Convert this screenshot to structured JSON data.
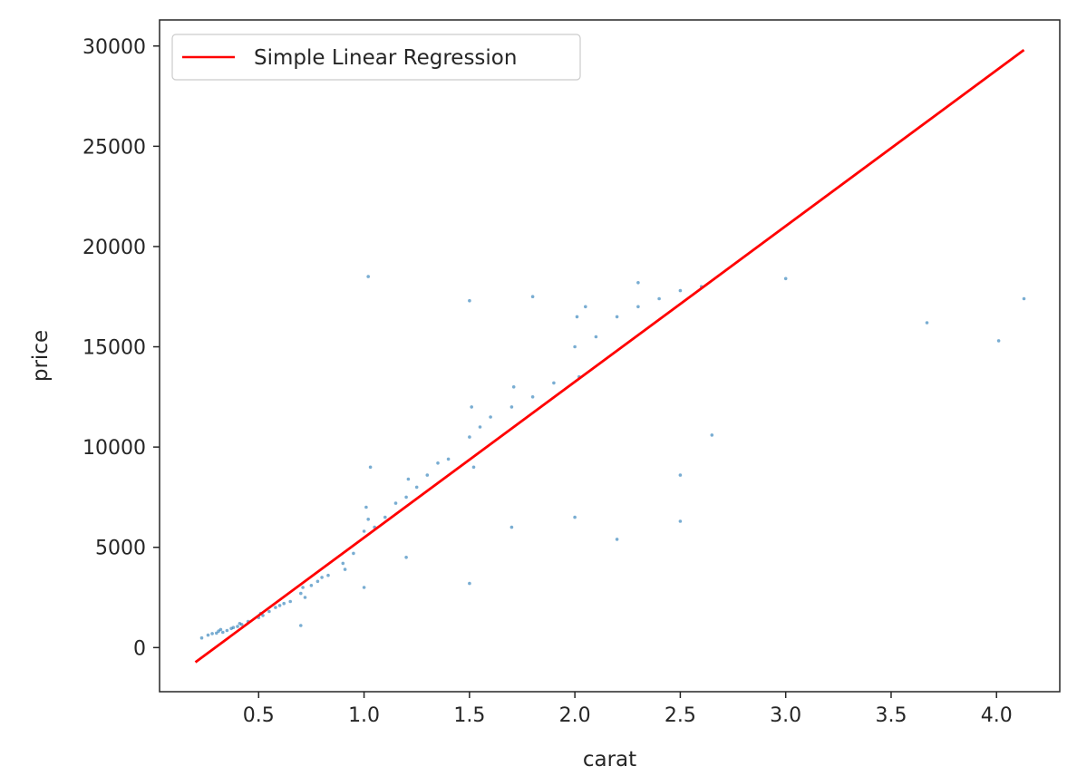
{
  "chart_data": {
    "type": "scatter",
    "title": "",
    "xlabel": "carat",
    "ylabel": "price",
    "xlim": [
      0.03,
      4.3
    ],
    "ylim": [
      -2200,
      31300
    ],
    "x_ticks": [
      0.5,
      1.0,
      1.5,
      2.0,
      2.5,
      3.0,
      3.5,
      4.0
    ],
    "x_tick_labels": [
      "0.5",
      "1.0",
      "1.5",
      "2.0",
      "2.5",
      "3.0",
      "3.5",
      "4.0"
    ],
    "y_ticks": [
      0,
      5000,
      10000,
      15000,
      20000,
      25000,
      30000
    ],
    "y_tick_labels": [
      "0",
      "5000",
      "10000",
      "15000",
      "20000",
      "25000",
      "30000"
    ],
    "grid": false,
    "legend": {
      "position": "top-left",
      "entries": [
        "Simple Linear Regression"
      ]
    },
    "colors": {
      "points": "#1f77b4",
      "line": "#ff0000",
      "axis": "#262626"
    },
    "series": [
      {
        "kind": "scatter",
        "points": [
          [
            0.23,
            480
          ],
          [
            0.26,
            620
          ],
          [
            0.28,
            700
          ],
          [
            0.3,
            720
          ],
          [
            0.31,
            820
          ],
          [
            0.32,
            900
          ],
          [
            0.33,
            760
          ],
          [
            0.35,
            850
          ],
          [
            0.37,
            950
          ],
          [
            0.38,
            1000
          ],
          [
            0.4,
            1050
          ],
          [
            0.41,
            1200
          ],
          [
            0.42,
            1150
          ],
          [
            0.45,
            1300
          ],
          [
            0.5,
            1500
          ],
          [
            0.51,
            1700
          ],
          [
            0.52,
            1600
          ],
          [
            0.55,
            1800
          ],
          [
            0.58,
            2000
          ],
          [
            0.6,
            2100
          ],
          [
            0.62,
            2200
          ],
          [
            0.65,
            2300
          ],
          [
            0.7,
            2700
          ],
          [
            0.71,
            3000
          ],
          [
            0.72,
            2500
          ],
          [
            0.75,
            3100
          ],
          [
            0.78,
            3300
          ],
          [
            0.8,
            3500
          ],
          [
            0.83,
            3600
          ],
          [
            0.9,
            4200
          ],
          [
            0.91,
            3900
          ],
          [
            0.95,
            4700
          ],
          [
            1.0,
            5800
          ],
          [
            1.01,
            7000
          ],
          [
            1.02,
            6400
          ],
          [
            1.03,
            9000
          ],
          [
            1.05,
            6000
          ],
          [
            1.1,
            6500
          ],
          [
            1.15,
            7200
          ],
          [
            1.2,
            7500
          ],
          [
            1.21,
            8400
          ],
          [
            1.25,
            8000
          ],
          [
            1.3,
            8600
          ],
          [
            1.35,
            9200
          ],
          [
            1.4,
            9400
          ],
          [
            1.5,
            10500
          ],
          [
            1.51,
            12000
          ],
          [
            1.52,
            9000
          ],
          [
            1.55,
            11000
          ],
          [
            1.6,
            11500
          ],
          [
            1.7,
            12000
          ],
          [
            1.71,
            13000
          ],
          [
            1.8,
            12500
          ],
          [
            1.9,
            13200
          ],
          [
            2.0,
            15000
          ],
          [
            2.01,
            16500
          ],
          [
            2.02,
            13500
          ],
          [
            2.05,
            17000
          ],
          [
            2.1,
            15500
          ],
          [
            2.2,
            16500
          ],
          [
            2.3,
            17000
          ],
          [
            2.4,
            17400
          ],
          [
            2.5,
            17800
          ],
          [
            0.7,
            1100
          ],
          [
            1.0,
            3000
          ],
          [
            1.5,
            3200
          ],
          [
            2.0,
            6500
          ],
          [
            1.2,
            4500
          ],
          [
            1.7,
            6000
          ],
          [
            2.5,
            6300
          ],
          [
            2.5,
            8600
          ],
          [
            2.2,
            5400
          ],
          [
            1.02,
            18500
          ],
          [
            1.5,
            17300
          ],
          [
            1.8,
            17500
          ],
          [
            2.3,
            18200
          ],
          [
            2.6,
            18000
          ],
          [
            2.65,
            10600
          ],
          [
            3.0,
            18400
          ],
          [
            3.67,
            16200
          ],
          [
            4.01,
            15300
          ],
          [
            4.13,
            17400
          ]
        ]
      },
      {
        "kind": "line",
        "name": "Simple Linear Regression",
        "points": [
          [
            0.2,
            -730
          ],
          [
            4.13,
            29800
          ]
        ]
      }
    ]
  }
}
